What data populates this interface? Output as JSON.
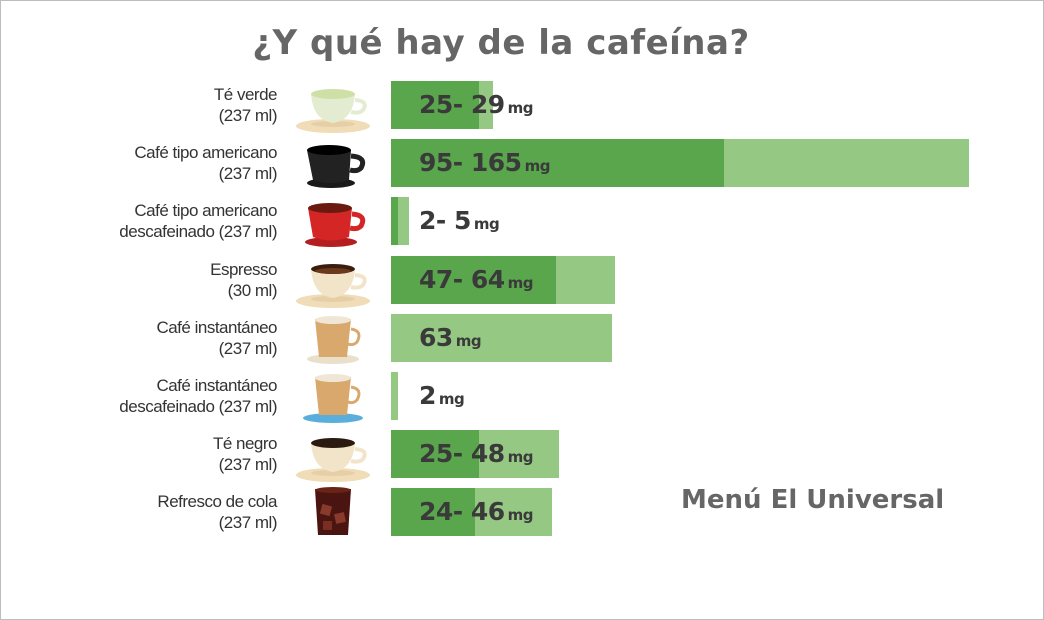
{
  "chart_data": {
    "type": "bar",
    "orientation": "horizontal",
    "title": "¿Y qué hay de la cafeína?",
    "unit": "mg",
    "source": "Menú El Universal",
    "categories": [
      {
        "name": "Té verde",
        "serving": "(237 ml)",
        "icon": "green-tea-cup-icon",
        "min": 25,
        "max": 29,
        "label": "25- 29"
      },
      {
        "name": "Café tipo americano",
        "serving": "(237 ml)",
        "icon": "black-coffee-mug-icon",
        "min": 95,
        "max": 165,
        "label": "95- 165"
      },
      {
        "name": "Café tipo americano",
        "serving": "descafeinado (237 ml)",
        "icon": "red-coffee-cup-icon",
        "min": 2,
        "max": 5,
        "label": "2- 5"
      },
      {
        "name": "Espresso",
        "serving": "(30 ml)",
        "icon": "espresso-cup-icon",
        "min": 47,
        "max": 64,
        "label": "47- 64"
      },
      {
        "name": "Café instantáneo",
        "serving": "(237 ml)",
        "icon": "instant-coffee-glass-icon",
        "min": 63,
        "max": 63,
        "label": "63"
      },
      {
        "name": "Café instantáneo",
        "serving": "descafeinado (237 ml)",
        "icon": "decaf-instant-coffee-glass-icon",
        "min": 2,
        "max": 2,
        "label": "2"
      },
      {
        "name": "Té negro",
        "serving": "(237 ml)",
        "icon": "black-tea-cup-icon",
        "min": 25,
        "max": 48,
        "label": "25- 48"
      },
      {
        "name": "Refresco de cola",
        "serving": "(237 ml)",
        "icon": "cola-glass-icon",
        "min": 24,
        "max": 46,
        "label": "24- 46"
      }
    ],
    "colors": {
      "min_bar": "#59a64d",
      "max_bar": "#95c983"
    }
  }
}
